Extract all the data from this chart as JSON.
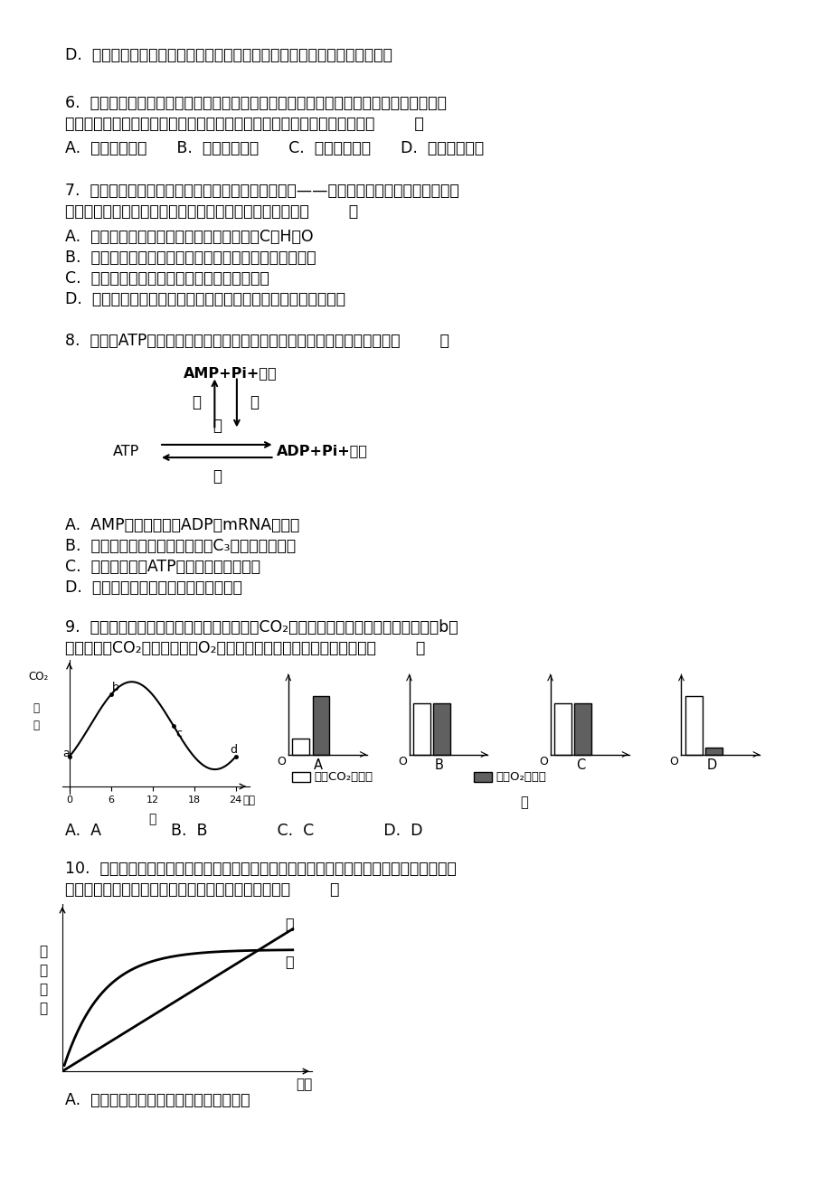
{
  "bg_color": "#ffffff",
  "text_color": "#000000",
  "line_d": "D.  在时间允许的情况下，可以观察到一个细胞从间期到末期的连续分裂过程",
  "q6": "6.  珍珠是河蚌产生的一种有机物，它既是一种有机宝石，又可作为护肤品的主要原料，因",
  "q6b": "为它在抑制细胞脂褐素的增加上有重要作用，这表明珍珠在保健上可用于（        ）",
  "q6c": "A.  抑制细胞癌变      B.  延缓细胞衰老      C.  促进细胞分裂      D.  诱导细胞分化",
  "q7": "7.  瑞典研究人员发现一种促进脂肪细胞生成的蛋白质——抗酒石酸酸性磷酸酶。这一发现",
  "q7b": "有望为治疗肥胖症开辟新途径。下列有关叙述不正确的是（        ）",
  "q7A": "A.  抗酒石酸酸性磷酸酶与脂肪的共有元素有C、H、O",
  "q7B": "B.  在适宜条件下，蛋白酶可以将抗酒石酸酸性磷酸酶水解",
  "q7C": "C.  抗酒石酸酸性磷酸酶遇双缩脲试剂呈现紫色",
  "q7D": "D.  理论上可以通过促进抗酒石酸酸性磷酸酶的功能来治疗肥胖症",
  "q8": "8.  如图，ATP是生物体内重要的能源物质，下列有关叙述中，不正确的是（        ）",
  "q8A": "A.  AMP可以作为合成ADP及mRNA的原料",
  "q8B": "B.  甲过程中释放的能量可以用于C₃还原或细胞分裂",
  "q8C": "C.  丁过程中合成ATP所需能量可能是光能",
  "q8D": "D.  催化乙和丙过程的酶应该是同一种酶",
  "q9": "9.  图甲表示某地夏季一密闭大棚内一昼夜间CO₂浓度的变化，而图乙表示棚内植株在b点",
  "q9b": "时，消耗的CO₂总量与消耗的O₂总量之比（体积比），其中正确的是（        ）",
  "q9ans": "A.  A              B.  B              C.  C              D.  D",
  "q10": "10.  如图是测定了某种生物的细胞对甲、乙两种物质吸收速率与该物质浓度的关系绘制成的",
  "q10b": "曲线，仔细分析后，你认为下列四种说法中正确的是（        ）",
  "q10A": "A.  甲物质是主动运输，乙物质是自由扩散"
}
